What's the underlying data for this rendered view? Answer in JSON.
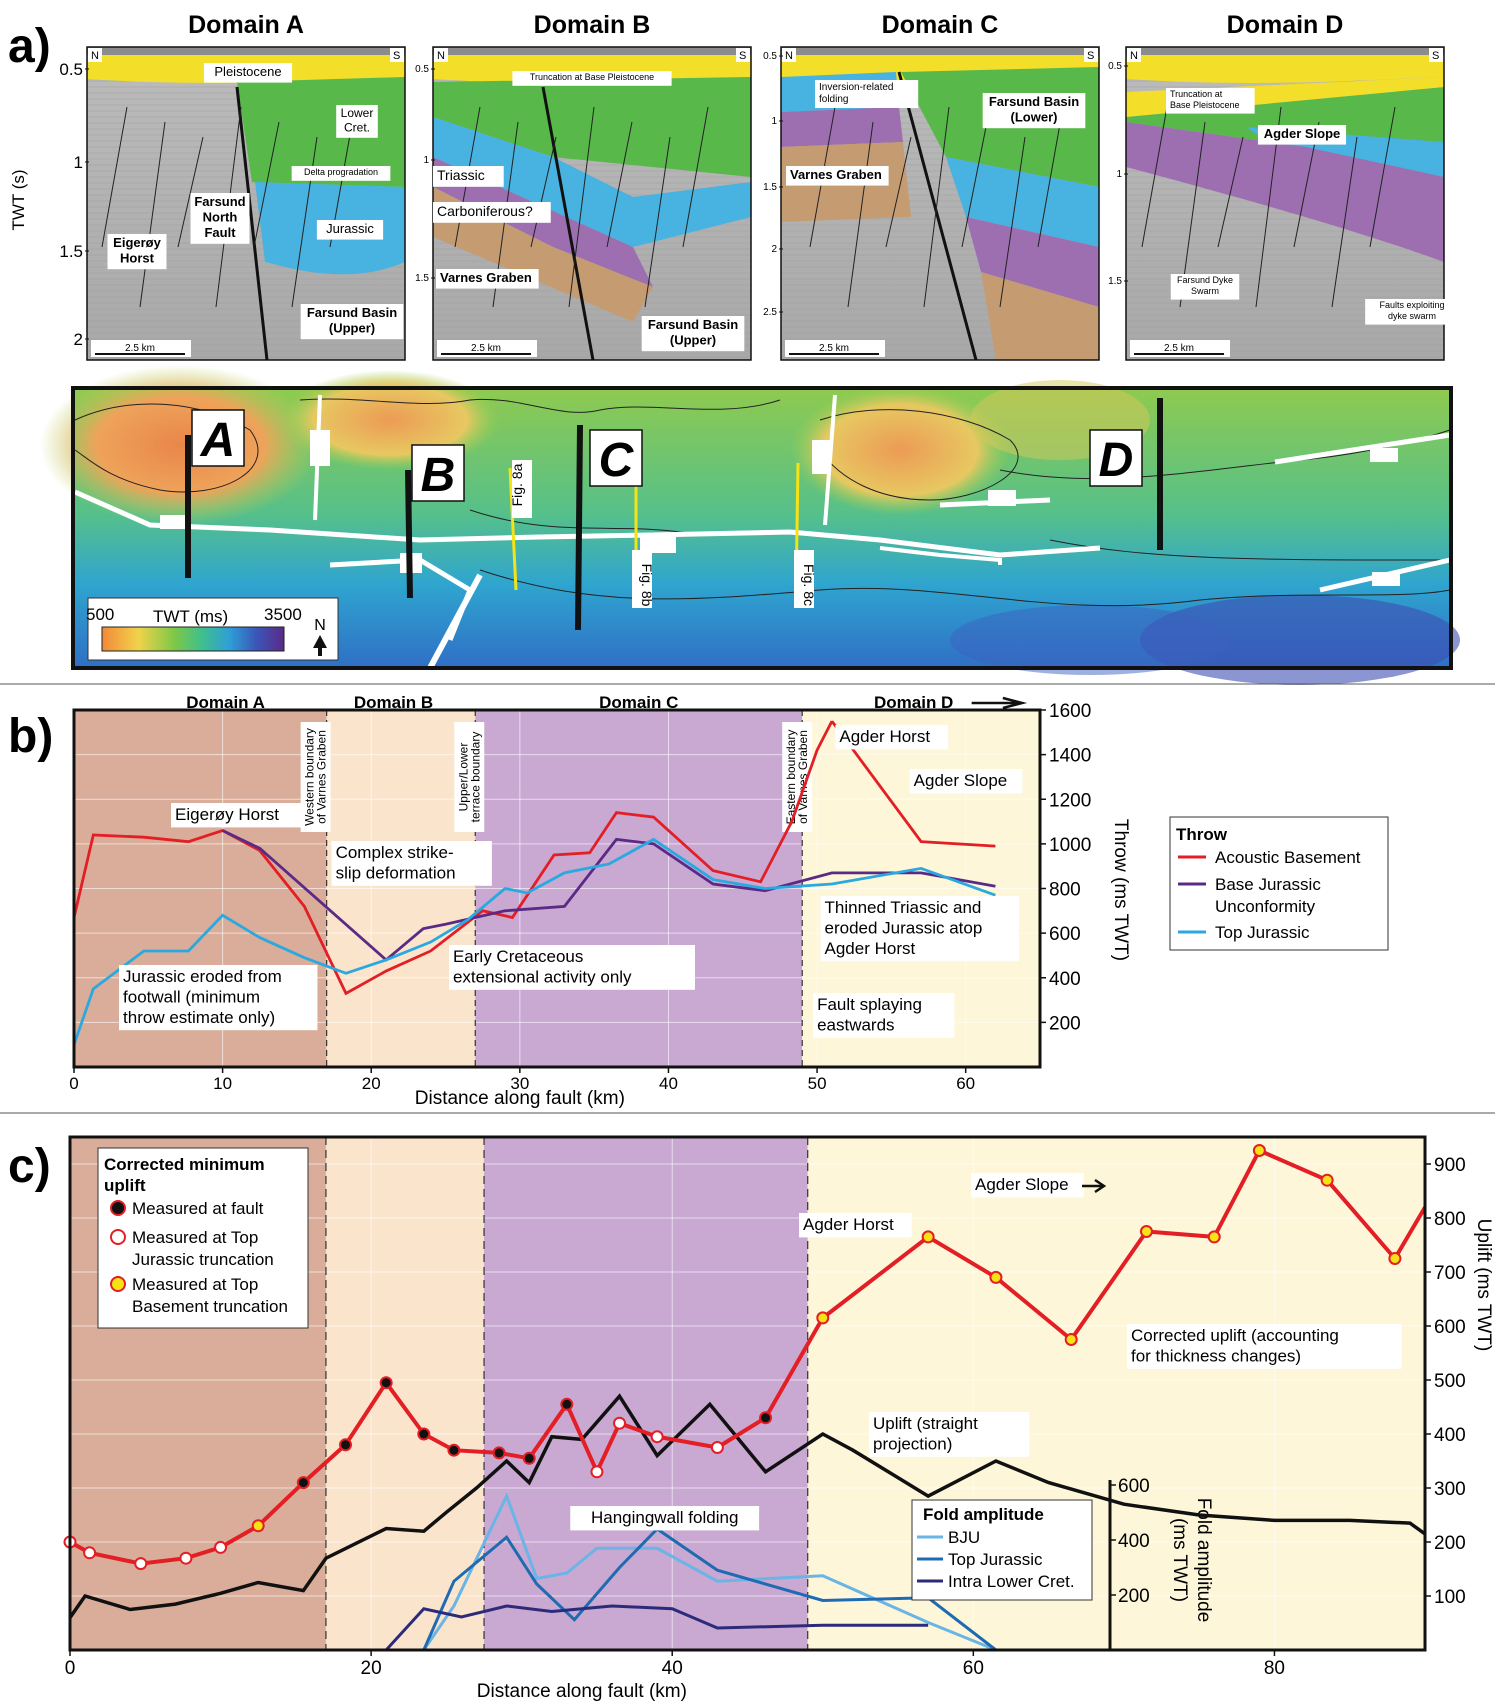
{
  "panel_a": {
    "label": "a)",
    "domains": [
      {
        "title": "Domain A",
        "N": "N",
        "S": "S",
        "ticks": [
          "0.5",
          "1",
          "1.5",
          "2"
        ],
        "scale": "2.5 km",
        "labels": [
          "Pleistocene",
          "Lower\nCret.",
          "Delta progradation",
          "Farsund\nNorth\nFault",
          "Jurassic",
          "Eigerøy\nHorst",
          "Farsund Basin\n(Upper)"
        ]
      },
      {
        "title": "Domain B",
        "N": "N",
        "S": "S",
        "ticks": [
          "0.5",
          "1",
          "1.5"
        ],
        "scale": "2.5 km",
        "labels": [
          "Truncation at Base Pleistocene",
          "Triassic",
          "Carboniferous?",
          "Varnes Graben",
          "Farsund Basin\n(Upper)"
        ]
      },
      {
        "title": "Domain C",
        "N": "N",
        "S": "S",
        "ticks": [
          "0.5",
          "1",
          "1.5",
          "2",
          "2.5"
        ],
        "scale": "2.5 km",
        "labels": [
          "Inversion-related\nfolding",
          "Farsund Basin\n(Lower)",
          "Varnes Graben"
        ]
      },
      {
        "title": "Domain D",
        "N": "N",
        "S": "S",
        "ticks": [
          "0.5",
          "1",
          "1.5"
        ],
        "scale": "2.5 km",
        "labels": [
          "Truncation at\nBase Pleistocene",
          "Agder Slope",
          "Farsund Dyke\nSwarm",
          "Faults exploiting\ndyke swarm"
        ]
      }
    ],
    "y_axis_label": "TWT (s)"
  },
  "map": {
    "markers": [
      "A",
      "B",
      "C",
      "D"
    ],
    "fig_labels": [
      "Fig. 8a",
      "Fig. 8b",
      "Fig. 8c"
    ],
    "colorbar": {
      "min": "500",
      "title": "TWT (ms)",
      "max": "3500"
    },
    "north": "N"
  },
  "chart_data": [
    {
      "type": "line",
      "label": "b)",
      "domains": [
        "Domain A",
        "Domain B",
        "Domain C",
        "Domain D"
      ],
      "boundary_labels": [
        "Western boundary\nof Varnes Graben",
        "Upper/Lower\nterrace boundary",
        "Eastern boundary\nof Varnes Graben"
      ],
      "boundaries_x": [
        17,
        27,
        49
      ],
      "xlabel": "Distance along fault (km)",
      "ylabel": "Throw (ms TWT)",
      "xlim": [
        0,
        65
      ],
      "ylim": [
        0,
        1600
      ],
      "xticks": [
        "0",
        "10",
        "20",
        "30",
        "40",
        "50",
        "60"
      ],
      "yticks": [
        "200",
        "400",
        "600",
        "800",
        "1000",
        "1200",
        "1400",
        "1600"
      ],
      "legend_title": "Throw",
      "series": [
        {
          "name": "Acoustic Basement",
          "color": "#e31e24",
          "x": [
            0,
            1.3,
            4.7,
            7.7,
            10,
            12.5,
            15.5,
            18.3,
            21,
            24,
            27.5,
            29.5,
            32.3,
            34.7,
            36.5,
            39,
            43,
            46.2,
            48.3,
            50,
            51
          ],
          "y": [
            670,
            1040,
            1030,
            1010,
            1060,
            970,
            720,
            330,
            430,
            520,
            700,
            670,
            950,
            960,
            1140,
            1120,
            880,
            830,
            1100,
            1420,
            1550
          ]
        },
        {
          "name": "Base Jurassic\nUnconformity",
          "color": "#5b2a86",
          "x": [
            10,
            12.5,
            21,
            23.5,
            25,
            29,
            33,
            36.5,
            39,
            43,
            46.5,
            51,
            57,
            62
          ],
          "y": [
            1060,
            980,
            480,
            620,
            640,
            700,
            720,
            1020,
            1000,
            820,
            790,
            870,
            870,
            810
          ]
        },
        {
          "name": "Top Jurassic",
          "color": "#29a9e0",
          "x": [
            0,
            1.3,
            4.7,
            7.7,
            10,
            12.5,
            15.5,
            18.3,
            21,
            24,
            26.5,
            29,
            30.5,
            33,
            36,
            39,
            43,
            46.5,
            51,
            57,
            62
          ],
          "y": [
            100,
            350,
            520,
            520,
            680,
            580,
            490,
            420,
            480,
            560,
            660,
            800,
            780,
            870,
            910,
            1020,
            840,
            800,
            820,
            890,
            770
          ]
        },
        {
          "name": "Acoustic Basement (east)",
          "color": "#e31e24",
          "x": [
            51,
            57,
            62
          ],
          "y": [
            1550,
            1010,
            990
          ]
        }
      ],
      "annotations": [
        "Eigerøy Horst",
        "Complex strike-\nslip deformation",
        "Jurassic eroded from\nfootwall (minimum\nthrow estimate only)",
        "Early Cretaceous\nextensional activity only",
        "Agder Horst",
        "Agder Slope",
        "Thinned Triassic and\neroded Jurassic atop\nAgder Horst",
        "Fault splaying\neastwards"
      ]
    },
    {
      "type": "line",
      "label": "c)",
      "boundaries_x": [
        17,
        27.5,
        49
      ],
      "xlabel": "Distance along fault (km)",
      "ylabel": "Uplift (ms TWT)",
      "y2label": "Fold amplitude\n(ms TWT)",
      "xlim": [
        0,
        90
      ],
      "ylim": [
        0,
        950
      ],
      "xticks": [
        "0",
        "20",
        "40",
        "60",
        "80"
      ],
      "yticks": [
        "100",
        "200",
        "300",
        "400",
        "500",
        "600",
        "700",
        "800",
        "900"
      ],
      "fold_ticks": [
        "200",
        "400",
        "600"
      ],
      "fold_ylim": [
        0,
        600
      ],
      "legend_title": "Corrected minimum\nuplift",
      "legend_items": [
        "Measured at fault",
        "Measured at Top\nJurassic truncation",
        "Measured at Top\nBasement truncation"
      ],
      "fold_legend_title": "Fold amplitude",
      "fold_series": [
        {
          "name": "BJU",
          "color": "#6ab4e6",
          "x": [
            23.5,
            25.5,
            29,
            31,
            33,
            35,
            39,
            43,
            50,
            57,
            61.5
          ],
          "y": [
            0,
            160,
            560,
            260,
            280,
            370,
            370,
            250,
            270,
            100,
            0
          ]
        },
        {
          "name": "Top Jurassic",
          "color": "#1f6bb2",
          "x": [
            23.5,
            25.5,
            29,
            31,
            33.5,
            36.5,
            39,
            43,
            50,
            57,
            61.5
          ],
          "y": [
            0,
            250,
            410,
            240,
            110,
            300,
            440,
            290,
            180,
            190,
            0
          ]
        },
        {
          "name": "Intra Lower Cret.",
          "color": "#2b2b7a",
          "x": [
            21,
            23.5,
            26,
            29,
            32,
            36,
            40,
            43,
            50,
            57
          ],
          "y": [
            0,
            150,
            120,
            160,
            140,
            160,
            150,
            80,
            90,
            90
          ]
        }
      ],
      "series": [
        {
          "name": "Corrected minimum uplift",
          "color": "#e31e24",
          "x": [
            0,
            1.3,
            4.7,
            7.7,
            10,
            12.5,
            15.5,
            18.3,
            21,
            23.5,
            25.5,
            28.5,
            30.5,
            33,
            35,
            36.5,
            39,
            43,
            46.2,
            50,
            57,
            61.5,
            66.5,
            71.5,
            76,
            79,
            83.5,
            88,
            90
          ],
          "y": [
            200,
            180,
            160,
            170,
            190,
            230,
            310,
            380,
            495,
            400,
            370,
            365,
            355,
            455,
            330,
            420,
            395,
            375,
            430,
            615,
            765,
            690,
            575,
            775,
            765,
            925,
            870,
            725,
            820
          ],
          "markers": [
            "open",
            "open",
            "open",
            "open",
            "open",
            "yellow",
            "black",
            "black",
            "black",
            "black",
            "black",
            "black",
            "black",
            "black",
            "open",
            "open",
            "open",
            "open",
            "black",
            "yellow",
            "yellow",
            "yellow",
            "yellow",
            "yellow",
            "yellow",
            "yellow",
            "yellow",
            "yellow",
            "none"
          ]
        },
        {
          "name": "Uplift (straight projection)",
          "color": "#111111",
          "x": [
            0,
            1,
            4,
            7,
            10,
            12.5,
            15.5,
            17,
            21,
            23.5,
            25,
            27,
            29,
            30.5,
            32,
            34,
            36.5,
            39,
            42.5,
            46.2,
            50,
            52,
            57,
            61.5,
            65,
            70,
            75,
            80,
            85,
            89,
            90
          ],
          "y": [
            60,
            100,
            75,
            85,
            105,
            125,
            110,
            170,
            225,
            220,
            255,
            300,
            350,
            310,
            395,
            390,
            470,
            360,
            455,
            330,
            400,
            370,
            285,
            350,
            310,
            270,
            250,
            240,
            240,
            235,
            215
          ]
        }
      ],
      "annotations": [
        "Agder Slope",
        "Agder Horst",
        "Corrected uplift (accounting\nfor thickness changes)",
        "Uplift (straight\nprojection)",
        "Hangingwall folding"
      ]
    }
  ]
}
